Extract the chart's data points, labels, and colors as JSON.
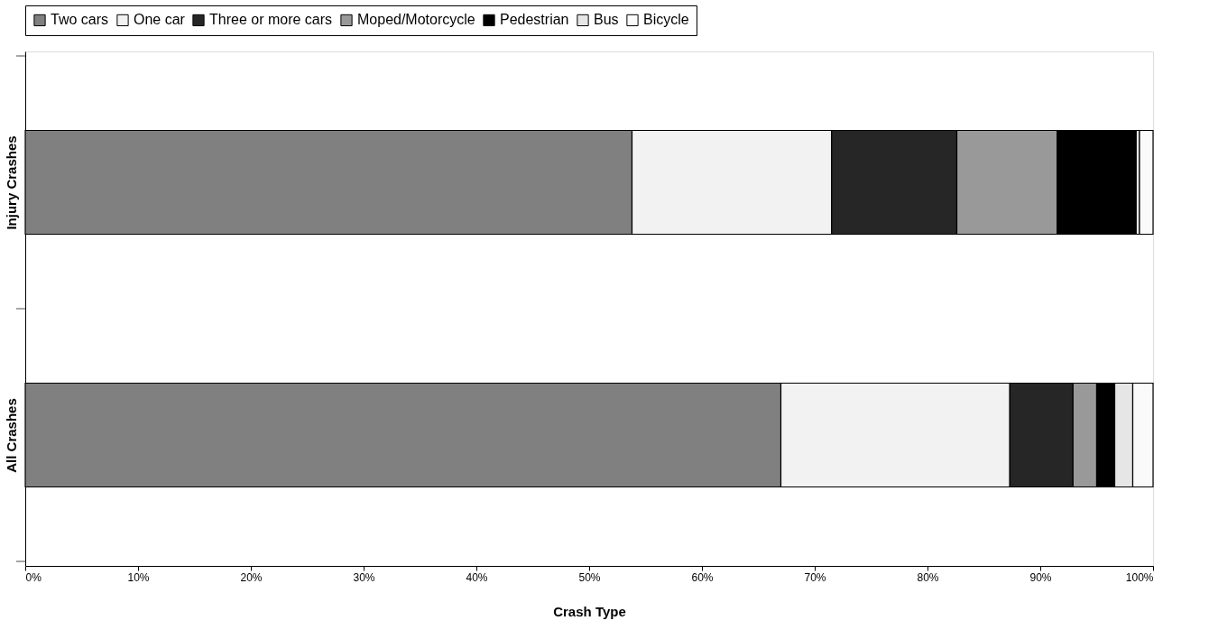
{
  "chart_data": {
    "type": "bar",
    "orientation": "horizontal",
    "stacked": true,
    "xlabel": "Crash Type",
    "categories": [
      "Injury Crashes",
      "All Crashes"
    ],
    "series": [
      {
        "name": "Two cars",
        "color": "#808080",
        "values": [
          53.8,
          67.0
        ]
      },
      {
        "name": "One car",
        "color": "#f2f2f2",
        "values": [
          17.7,
          20.3
        ]
      },
      {
        "name": "Three or more cars",
        "color": "#262626",
        "values": [
          11.1,
          5.6
        ]
      },
      {
        "name": "Moped/Motorcycle",
        "color": "#999999",
        "values": [
          8.9,
          2.1
        ]
      },
      {
        "name": "Pedestrian",
        "color": "#000000",
        "values": [
          7.0,
          1.6
        ]
      },
      {
        "name": "Bus",
        "color": "#e6e6e6",
        "values": [
          0.3,
          1.6
        ]
      },
      {
        "name": "Bicycle",
        "color": "#fafafa",
        "values": [
          1.2,
          1.8
        ]
      }
    ],
    "xlim": [
      0,
      100
    ],
    "xticks": [
      {
        "value": 0,
        "label": "0%"
      },
      {
        "value": 10,
        "label": "10%"
      },
      {
        "value": 20,
        "label": "20%"
      },
      {
        "value": 30,
        "label": "30%"
      },
      {
        "value": 40,
        "label": "40%"
      },
      {
        "value": 50,
        "label": "50%"
      },
      {
        "value": 60,
        "label": "60%"
      },
      {
        "value": 70,
        "label": "70%"
      },
      {
        "value": 80,
        "label": "80%"
      },
      {
        "value": 90,
        "label": "90%"
      },
      {
        "value": 100,
        "label": "100%"
      }
    ],
    "grid": false,
    "legend": "top"
  }
}
